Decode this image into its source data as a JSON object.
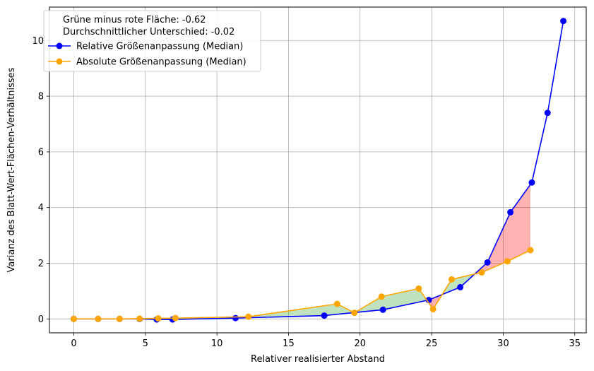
{
  "chart_data": {
    "type": "line",
    "title": "",
    "xlabel": "Relativer realisierter Abstand",
    "ylabel": "Varianz des Blatt-Wert-Flächen-Verhältnisses",
    "xlim": [
      -1.7,
      35.8
    ],
    "ylim": [
      -0.5,
      11.2
    ],
    "xticks": [
      0,
      5,
      10,
      15,
      20,
      25,
      30,
      35
    ],
    "yticks": [
      0,
      2,
      4,
      6,
      8,
      10
    ],
    "grid": true,
    "legend_position": "top-left",
    "annotations": [
      "Grüne minus rote Fläche: -0.62",
      "Durchschnittlicher Unterschied: -0.02"
    ],
    "series": [
      {
        "name": "Relative Größenanpassung (Median)",
        "color": "#0000ff",
        "x": [
          0,
          1.7,
          3.2,
          4.6,
          5.8,
          6.9,
          11.3,
          17.5,
          21.6,
          24.8,
          27.0,
          28.9,
          30.5,
          32.0,
          33.1,
          34.2
        ],
        "y": [
          0,
          0,
          0,
          0,
          -0.02,
          -0.02,
          0.03,
          0.12,
          0.33,
          0.68,
          1.14,
          2.03,
          3.83,
          4.9,
          7.4,
          10.7
        ]
      },
      {
        "name": "Absolute Größenanpassung (Median)",
        "color": "#ffa500",
        "x": [
          0,
          1.7,
          3.2,
          4.6,
          5.9,
          7.1,
          12.2,
          18.4,
          19.6,
          21.5,
          24.1,
          25.1,
          26.4,
          28.5,
          30.3,
          31.9
        ],
        "y": [
          0,
          0,
          0,
          0.01,
          0.02,
          0.03,
          0.08,
          0.54,
          0.22,
          0.8,
          1.09,
          0.35,
          1.42,
          1.67,
          2.07,
          2.47
        ]
      }
    ],
    "fill_colors": {
      "positive": "#2ca02c",
      "negative": "#ff0000"
    }
  }
}
